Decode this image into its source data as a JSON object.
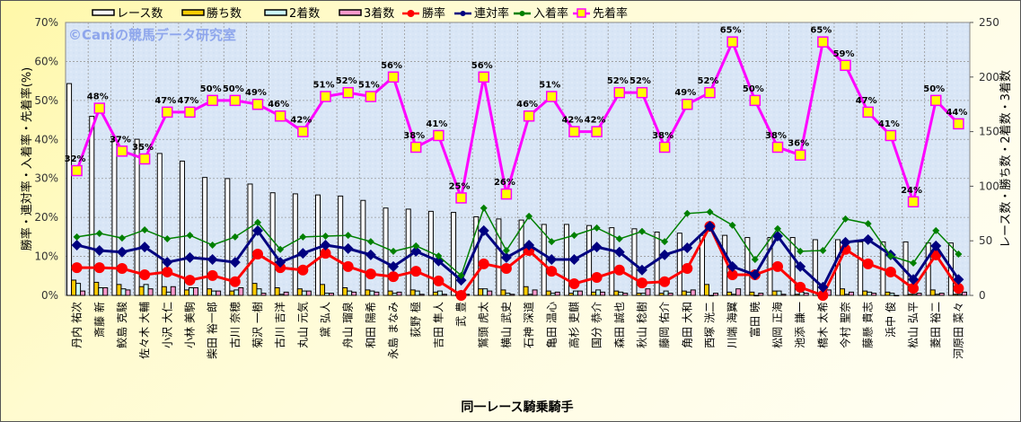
{
  "chart_data": {
    "type": "bar+line",
    "title": "",
    "watermark": "©Caniの競馬データ研究室",
    "xlabel": "同一レース騎乗騎手",
    "ylabel_left": "勝率・連対率・入着率・先着率(%)",
    "ylabel_right": "レース数・勝ち数・2着数・3着数",
    "ylim_left": [
      0,
      70
    ],
    "ylim_right": [
      0,
      250
    ],
    "yticks_left": [
      "0%",
      "10%",
      "20%",
      "30%",
      "40%",
      "50%",
      "60%",
      "70%"
    ],
    "yticks_right": [
      "0",
      "50",
      "100",
      "150",
      "200",
      "250"
    ],
    "grid": true,
    "legend_position": "top",
    "categories": [
      "丹内 祐次",
      "斎藤 新",
      "鮫島 克駿",
      "佐々木 大輔",
      "小沢 大仁",
      "小林 美駒",
      "柴田 裕一郎",
      "古川 奈穂",
      "菊沢 一樹",
      "古川 吉洋",
      "丸山 元気",
      "黛 弘人",
      "舟山 瑠泉",
      "和田 陽希",
      "永島 まなみ",
      "荻野 極",
      "吉田 隼人",
      "武 豊",
      "鷲頭 虎太",
      "横山 武史",
      "石神 深道",
      "亀田 温心",
      "高杉 吏麒",
      "国分 恭介",
      "森田 誠也",
      "秋山 稔樹",
      "藤岡 佑介",
      "角田 大和",
      "西塚 洸二",
      "川端 海翼",
      "富田 暁",
      "松岡 正海",
      "池添 謙一",
      "橋木 太希",
      "今村 聖奈",
      "藤懸 貴志",
      "浜中 俊",
      "松山 弘平",
      "菱田 裕二",
      "河原田 菜々"
    ],
    "bar_series": [
      {
        "name": "レース数",
        "axis": "right",
        "color": "#ffffff",
        "values": [
          194,
          164,
          143,
          143,
          130,
          123,
          108,
          107,
          102,
          94,
          93,
          92,
          91,
          87,
          80,
          79,
          77,
          76,
          72,
          70,
          69,
          65,
          65,
          64,
          62,
          61,
          58,
          57,
          55,
          55,
          53,
          53,
          53,
          51,
          51,
          49,
          49,
          49,
          48,
          48
        ]
      },
      {
        "name": "勝ち数",
        "axis": "right",
        "color": "#ffcc00",
        "values": [
          14,
          12,
          10,
          8,
          8,
          5,
          6,
          4,
          11,
          7,
          6,
          10,
          7,
          5,
          4,
          5,
          3,
          0,
          6,
          5,
          8,
          4,
          2,
          3,
          4,
          2,
          2,
          4,
          10,
          3,
          3,
          4,
          1,
          0,
          6,
          4,
          3,
          1,
          5,
          1
        ]
      },
      {
        "name": "2着数",
        "axis": "right",
        "color": "#ccffff",
        "values": [
          11,
          7,
          6,
          10,
          3,
          7,
          4,
          5,
          6,
          1,
          4,
          2,
          4,
          4,
          2,
          4,
          4,
          3,
          6,
          2,
          1,
          2,
          4,
          5,
          3,
          2,
          4,
          3,
          0,
          1,
          0,
          4,
          3,
          1,
          1,
          3,
          2,
          1,
          1,
          1
        ]
      },
      {
        "name": "3着数",
        "axis": "right",
        "color": "#ff99cc",
        "values": [
          4,
          7,
          5,
          6,
          8,
          7,
          4,
          7,
          2,
          3,
          4,
          2,
          3,
          3,
          3,
          1,
          1,
          1,
          4,
          1,
          5,
          3,
          4,
          3,
          2,
          6,
          2,
          5,
          2,
          6,
          2,
          1,
          2,
          5,
          3,
          2,
          0,
          2,
          2,
          3
        ]
      }
    ],
    "line_series": [
      {
        "name": "勝率",
        "axis": "left",
        "color": "#ff0000",
        "values": [
          7.1,
          7.1,
          6.9,
          5.3,
          6.0,
          3.9,
          5.1,
          3.5,
          10.6,
          7.1,
          6.5,
          10.8,
          7.4,
          5.5,
          4.8,
          6.2,
          3.7,
          0,
          8.1,
          6.9,
          11.5,
          6.2,
          3.0,
          4.6,
          6.5,
          3.2,
          3.5,
          6.9,
          17.7,
          5.3,
          5.3,
          7.4,
          2.1,
          0,
          11.8,
          8.1,
          6.0,
          1.8,
          10.4,
          1.8
        ]
      },
      {
        "name": "連対率",
        "axis": "left",
        "color": "#000080",
        "values": [
          12.9,
          11.5,
          11.1,
          12.4,
          8.5,
          9.7,
          9.2,
          8.5,
          16.6,
          8.5,
          10.8,
          12.9,
          12.0,
          10.4,
          7.4,
          11.3,
          8.8,
          3.9,
          16.6,
          9.7,
          12.9,
          9.2,
          9.2,
          12.4,
          11.1,
          6.5,
          10.4,
          12.2,
          17.7,
          7.4,
          5.3,
          15.2,
          7.4,
          2.1,
          13.6,
          14.3,
          10.4,
          4.1,
          12.7,
          4.1
        ]
      },
      {
        "name": "入着率",
        "axis": "left",
        "color": "#008000",
        "values": [
          15.0,
          15.9,
          14.7,
          16.8,
          14.5,
          15.4,
          12.9,
          15.0,
          18.7,
          11.8,
          15.0,
          15.2,
          15.4,
          13.8,
          11.3,
          12.7,
          10.1,
          5.1,
          22.4,
          11.5,
          20.3,
          13.8,
          15.4,
          17.3,
          14.5,
          16.4,
          13.8,
          21.0,
          21.4,
          18.0,
          9.2,
          17.1,
          11.3,
          11.5,
          19.6,
          18.4,
          10.1,
          8.3,
          16.6,
          10.6
        ]
      },
      {
        "name": "先着率",
        "axis": "left",
        "color": "#ff00ff",
        "values": [
          32,
          48,
          37,
          35,
          47,
          47,
          50,
          50,
          49,
          46,
          42,
          51,
          52,
          51,
          56,
          38,
          41,
          25,
          56,
          26,
          46,
          51,
          42,
          42,
          52,
          52,
          38,
          49,
          52,
          65,
          50,
          38,
          36,
          65,
          59,
          47,
          41,
          24,
          50,
          44
        ],
        "data_labels": [
          "32%",
          "48%",
          "37%",
          "35%",
          "47%",
          "47%",
          "50%",
          "50%",
          "49%",
          "46%",
          "42%",
          "51%",
          "52%",
          "51%",
          "56%",
          "38%",
          "41%",
          "25%",
          "56%",
          "26%",
          "46%",
          "51%",
          "42%",
          "42%",
          "52%",
          "52%",
          "38%",
          "49%",
          "52%",
          "65%",
          "50%",
          "38%",
          "36%",
          "65%",
          "59%",
          "47%",
          "41%",
          "24%",
          "50%",
          "44%"
        ]
      }
    ]
  }
}
